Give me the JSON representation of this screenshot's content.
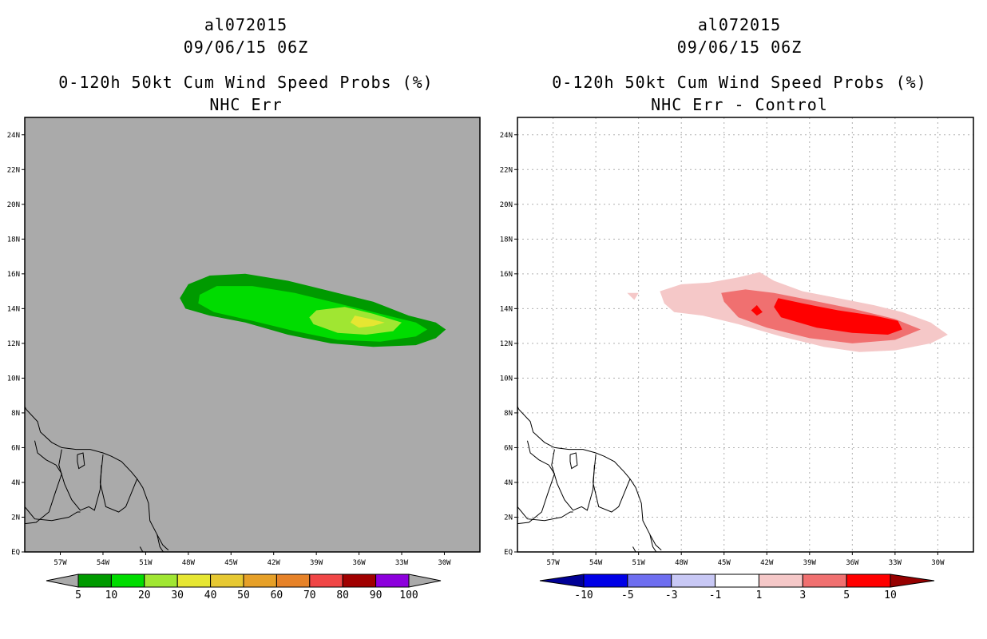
{
  "chart_data": [
    {
      "type": "filled-contour map",
      "id": "left",
      "title_lines": [
        "al072015",
        "09/06/15 06Z",
        "0-120h 50kt Cum Wind Speed Probs (%)",
        "NHC Err"
      ],
      "background": "#aaaaaa",
      "show_grid": false,
      "x_ticks": [
        "57W",
        "54W",
        "51W",
        "48W",
        "45W",
        "42W",
        "39W",
        "36W",
        "33W",
        "30W"
      ],
      "x_tick_values": [
        -57,
        -54,
        -51,
        -48,
        -45,
        -42,
        -39,
        -36,
        -33,
        -30
      ],
      "y_ticks": [
        "EQ",
        "2N",
        "4N",
        "6N",
        "8N",
        "10N",
        "12N",
        "14N",
        "16N",
        "18N",
        "20N",
        "22N",
        "24N"
      ],
      "y_tick_values": [
        0,
        2,
        4,
        6,
        8,
        10,
        12,
        14,
        16,
        18,
        20,
        22,
        24
      ],
      "xlim": [
        -59.5,
        -27.5
      ],
      "ylim": [
        0,
        25
      ],
      "colorbar": {
        "labels": [
          "5",
          "10",
          "20",
          "30",
          "40",
          "50",
          "60",
          "70",
          "80",
          "90",
          "100"
        ],
        "colors": [
          "#009a00",
          "#00dc00",
          "#a0e632",
          "#e6e632",
          "#e6c832",
          "#e6a028",
          "#e68228",
          "#f04646",
          "#a00000",
          "#8c00dc"
        ],
        "extension_color": "#aaaaaa"
      },
      "contours": [
        {
          "level": "5-10",
          "color": "#009a00",
          "points": [
            [
              -48.6,
              14.6
            ],
            [
              -48.0,
              15.4
            ],
            [
              -46.5,
              15.9
            ],
            [
              -44.0,
              16.0
            ],
            [
              -41.0,
              15.6
            ],
            [
              -38.0,
              15.0
            ],
            [
              -35.0,
              14.4
            ],
            [
              -32.5,
              13.6
            ],
            [
              -30.6,
              13.2
            ],
            [
              -29.9,
              12.8
            ],
            [
              -30.6,
              12.3
            ],
            [
              -32.0,
              11.9
            ],
            [
              -35.0,
              11.8
            ],
            [
              -38.0,
              12.0
            ],
            [
              -41.0,
              12.5
            ],
            [
              -44.0,
              13.2
            ],
            [
              -46.5,
              13.6
            ],
            [
              -48.2,
              14.0
            ]
          ]
        },
        {
          "level": "10-20",
          "color": "#00dc00",
          "points": [
            [
              -47.2,
              14.8
            ],
            [
              -46.0,
              15.3
            ],
            [
              -43.5,
              15.3
            ],
            [
              -40.5,
              14.9
            ],
            [
              -37.5,
              14.3
            ],
            [
              -34.5,
              13.7
            ],
            [
              -32.0,
              13.2
            ],
            [
              -31.2,
              12.8
            ],
            [
              -32.0,
              12.4
            ],
            [
              -34.5,
              12.1
            ],
            [
              -37.5,
              12.2
            ],
            [
              -40.5,
              12.7
            ],
            [
              -43.5,
              13.3
            ],
            [
              -46.2,
              13.8
            ],
            [
              -47.3,
              14.3
            ]
          ]
        },
        {
          "level": "20-30",
          "color": "#a0e632",
          "points": [
            [
              -39.0,
              13.9
            ],
            [
              -37.0,
              14.1
            ],
            [
              -35.0,
              13.7
            ],
            [
              -33.0,
              13.2
            ],
            [
              -33.6,
              12.7
            ],
            [
              -35.5,
              12.5
            ],
            [
              -37.5,
              12.6
            ],
            [
              -39.2,
              13.1
            ],
            [
              -39.5,
              13.5
            ]
          ]
        },
        {
          "level": "30-40",
          "color": "#e6e632",
          "points": [
            [
              -36.3,
              13.6
            ],
            [
              -35.2,
              13.4
            ],
            [
              -34.2,
              13.2
            ],
            [
              -35.0,
              13.0
            ],
            [
              -36.0,
              12.9
            ],
            [
              -36.6,
              13.2
            ]
          ]
        }
      ]
    },
    {
      "type": "filled-contour map",
      "id": "right",
      "title_lines": [
        "al072015",
        "09/06/15 06Z",
        "0-120h 50kt Cum Wind Speed Probs (%)",
        "NHC Err - Control"
      ],
      "background": "#ffffff",
      "show_grid": true,
      "x_ticks": [
        "57W",
        "54W",
        "51W",
        "48W",
        "45W",
        "42W",
        "39W",
        "36W",
        "33W",
        "30W"
      ],
      "x_tick_values": [
        -57,
        -54,
        -51,
        -48,
        -45,
        -42,
        -39,
        -36,
        -33,
        -30
      ],
      "y_ticks": [
        "EQ",
        "2N",
        "4N",
        "6N",
        "8N",
        "10N",
        "12N",
        "14N",
        "16N",
        "18N",
        "20N",
        "22N",
        "24N"
      ],
      "y_tick_values": [
        0,
        2,
        4,
        6,
        8,
        10,
        12,
        14,
        16,
        18,
        20,
        22,
        24
      ],
      "xlim": [
        -59.5,
        -27.5
      ],
      "ylim": [
        0,
        25
      ],
      "colorbar": {
        "labels": [
          "-10",
          "-5",
          "-3",
          "-1",
          "1",
          "3",
          "5",
          "10"
        ],
        "colors": [
          "#0000e6",
          "#6e6ef0",
          "#c8c8f5",
          "#ffffff",
          "#f5c8c8",
          "#f07070",
          "#ff0000"
        ],
        "left_extension_color": "#000096",
        "right_extension_color": "#960000"
      },
      "contours": [
        {
          "level": "1-3",
          "color": "#f5c8c8",
          "points": [
            [
              -49.5,
              15.0
            ],
            [
              -48.0,
              15.4
            ],
            [
              -46.0,
              15.5
            ],
            [
              -44.0,
              15.8
            ],
            [
              -42.5,
              16.1
            ],
            [
              -41.5,
              15.6
            ],
            [
              -39.5,
              15.0
            ],
            [
              -37.0,
              14.6
            ],
            [
              -34.5,
              14.2
            ],
            [
              -32.5,
              13.8
            ],
            [
              -30.5,
              13.2
            ],
            [
              -29.3,
              12.5
            ],
            [
              -30.5,
              12.0
            ],
            [
              -33.0,
              11.6
            ],
            [
              -35.5,
              11.5
            ],
            [
              -38.0,
              11.8
            ],
            [
              -41.0,
              12.4
            ],
            [
              -44.0,
              13.1
            ],
            [
              -46.5,
              13.6
            ],
            [
              -48.5,
              13.8
            ],
            [
              -49.2,
              14.3
            ]
          ]
        },
        {
          "level": "1-3",
          "color": "#f5c8c8",
          "points": [
            [
              -51.8,
              14.9
            ],
            [
              -51.0,
              14.9
            ],
            [
              -51.3,
              14.5
            ]
          ]
        },
        {
          "level": "3-5",
          "color": "#f07070",
          "points": [
            [
              -45.2,
              14.9
            ],
            [
              -43.5,
              15.1
            ],
            [
              -41.5,
              14.9
            ],
            [
              -39.0,
              14.5
            ],
            [
              -36.0,
              14.0
            ],
            [
              -33.0,
              13.4
            ],
            [
              -31.2,
              12.8
            ],
            [
              -33.0,
              12.2
            ],
            [
              -36.0,
              12.0
            ],
            [
              -39.0,
              12.3
            ],
            [
              -42.0,
              12.9
            ],
            [
              -44.0,
              13.5
            ],
            [
              -45.0,
              14.4
            ]
          ]
        },
        {
          "level": "3-5",
          "color": "#f07070",
          "points": [
            [
              -44.5,
              14.7
            ],
            [
              -44.4,
              14.2
            ],
            [
              -44.6,
              14.3
            ]
          ]
        },
        {
          "level": "5-10",
          "color": "#ff0000",
          "points": [
            [
              -41.2,
              14.6
            ],
            [
              -39.5,
              14.3
            ],
            [
              -37.0,
              13.9
            ],
            [
              -34.5,
              13.6
            ],
            [
              -32.8,
              13.3
            ],
            [
              -32.5,
              12.8
            ],
            [
              -33.5,
              12.5
            ],
            [
              -36.0,
              12.6
            ],
            [
              -38.5,
              12.9
            ],
            [
              -41.0,
              13.5
            ],
            [
              -41.5,
              14.1
            ]
          ]
        },
        {
          "level": "5-10",
          "color": "#ff0000",
          "points": [
            [
              -42.7,
              14.2
            ],
            [
              -42.3,
              13.8
            ],
            [
              -42.7,
              13.6
            ],
            [
              -43.1,
              13.9
            ]
          ]
        }
      ]
    }
  ]
}
